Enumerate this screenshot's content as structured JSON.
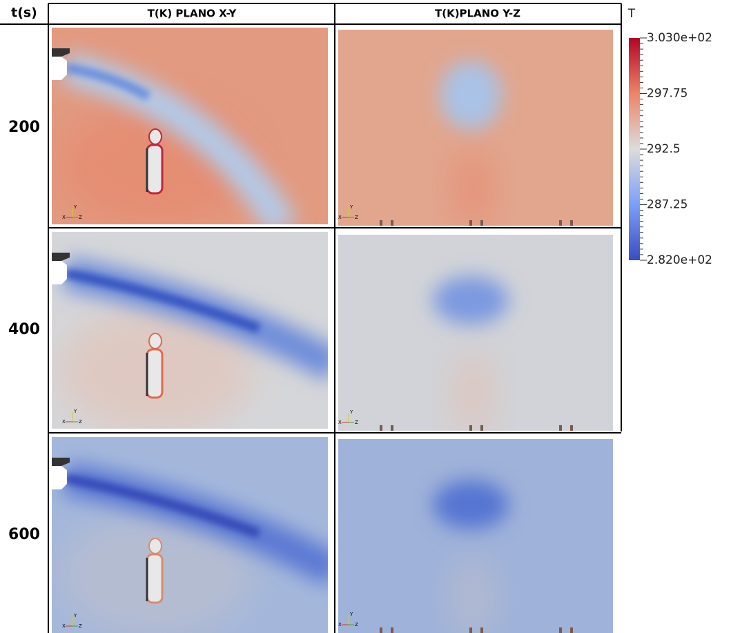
{
  "header": {
    "time": "t(s)",
    "col1": "T(K) PLANO X-Y",
    "col2": "T(K)PLANO Y-Z"
  },
  "rows": [
    "200",
    "400",
    "600"
  ],
  "triad_labels": [
    "Y",
    "X",
    "Z"
  ],
  "colorbar": {
    "title": "T",
    "lim": [
      282,
      303
    ],
    "ticks": [
      {
        "value": 303,
        "label": "3.030e+02"
      },
      297.75,
      292.5,
      287.25,
      {
        "value": 282,
        "label": "2.820e+02"
      }
    ]
  }
}
